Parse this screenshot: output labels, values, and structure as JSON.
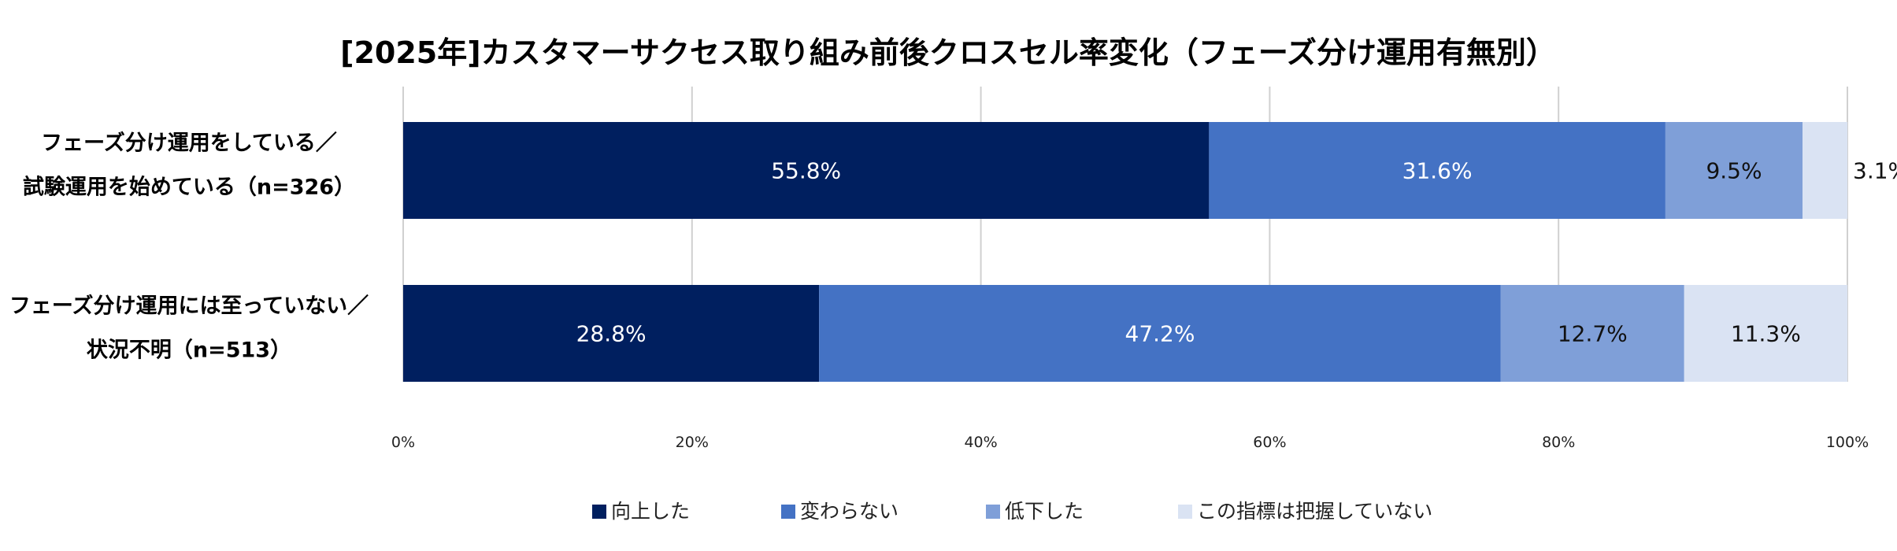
{
  "chart_data": {
    "type": "bar",
    "orientation": "horizontal",
    "stacked": "percent",
    "title": "[2025年]カスタマーサクセス取り組み前後クロスセル率変化（フェーズ分け運用有無別）",
    "categories": [
      [
        "フェーズ分け運用をしている／",
        "試験運用を始めている（n=326）"
      ],
      [
        "フェーズ分け運用には至っていない／",
        "状況不明（n=513）"
      ]
    ],
    "series": [
      {
        "name": "向上した",
        "values": [
          55.8,
          28.8
        ],
        "labels": [
          "55.8%",
          "28.8%"
        ],
        "color": "#001f5f",
        "label_color": "#ffffff"
      },
      {
        "name": "変わらない",
        "values": [
          31.6,
          47.2
        ],
        "labels": [
          "31.6%",
          "47.2%"
        ],
        "color": "#4472c4",
        "label_color": "#ffffff"
      },
      {
        "name": "低下した",
        "values": [
          9.5,
          12.7
        ],
        "labels": [
          "9.5%",
          "12.7%"
        ],
        "color": "#7f9fd8",
        "label_color": "#111111"
      },
      {
        "name": "この指標は把握していない",
        "values": [
          3.1,
          11.3
        ],
        "labels": [
          "3.1%",
          "11.3%"
        ],
        "color": "#dae3f3",
        "label_color": "#111111"
      }
    ],
    "xlim": [
      0,
      100
    ],
    "xticks": [
      "0%",
      "20%",
      "40%",
      "60%",
      "80%",
      "100%"
    ],
    "grid": true,
    "legend": "bottom"
  }
}
